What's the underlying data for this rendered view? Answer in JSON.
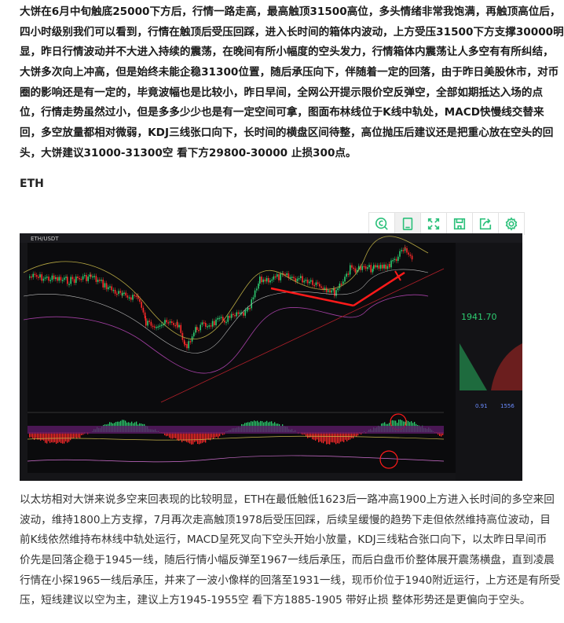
{
  "paragraph1": [
    "大饼在6月中旬触底25000下方后，行情一路走高，最高触顶31500高位，多头情绪非常我饱满，再触顶高位后，",
    "四小时级别我们可以看到，行情在触顶后受压回踩，进入长时间的箱体内波动，上方受压31500下方支撑30000明",
    "显，昨日行情波动并不大进入持续的震荡，在晚间有所小幅度的空头发力，行情箱体内震荡让人多空有有所纠结，",
    "大饼多次向上冲高，但是始终未能企稳31300位置，随后承压向下，伴随着一定的回落，由于昨日美股休市，对币",
    "圈的影响还是有一定的，毕竟波幅也是比较小，昨日早间，全网公开提示限价空反弹空，全部如期抵达入场的点",
    "位，行情走势虽然过小，但是多多少少也是有一定空间可拿，图面布林线位于K线中轨处，MACD快慢线交替来",
    "回，多空放量都相对微弱，KDJ三线张口向下，长时间的横盘区间待整，高位抛压后建议还是把重心放在空头的回",
    "头，大饼建议31000-31300空 看下方29800-30000 止损300点。"
  ],
  "section_heading": "ETH",
  "toolbar": {
    "icons": [
      "search-coin-icon",
      "tablet-icon",
      "fullscreen-icon",
      "save-icon",
      "share-icon",
      "settings-icon"
    ],
    "accent": "#2bc07a"
  },
  "chart_image": {
    "symbol": "ETH/USDT",
    "price": "1941.70",
    "stats": [
      "0.91",
      "1556"
    ],
    "up_color": "#2ecc71",
    "down_color": "#ff2a2a"
  },
  "paragraph2": [
    "以太坊相对大饼来说多空来回表现的比较明显，ETH在最低触低1623后一路冲高1900上方进入长时间的多空来回",
    "波动，维持1800上方支撑，7月再次走高触顶1978后受压回踩，后续呈缓慢的趋势下走但依然维持高位波动，目",
    "前K线依然维持布林线中轨处运行，MACD呈死叉向下空头开始小放量，KDJ三线粘合张口向下，以太昨日早间币",
    "价先是回落企稳于1945一线，随后行情小幅反弹至1967一线后承压，而后白盘币价整体展开震荡横盘，直到凌晨",
    "行情在小探1965一线后承压，并来了一波小像样的回落至1931一线，现币价位于1940附近运行，上方还是有所受",
    "压，短线建议以空为主，建议上方1945-1955空 看下方1885-1905 带好止损 整体形势还是更偏向于空头。"
  ]
}
